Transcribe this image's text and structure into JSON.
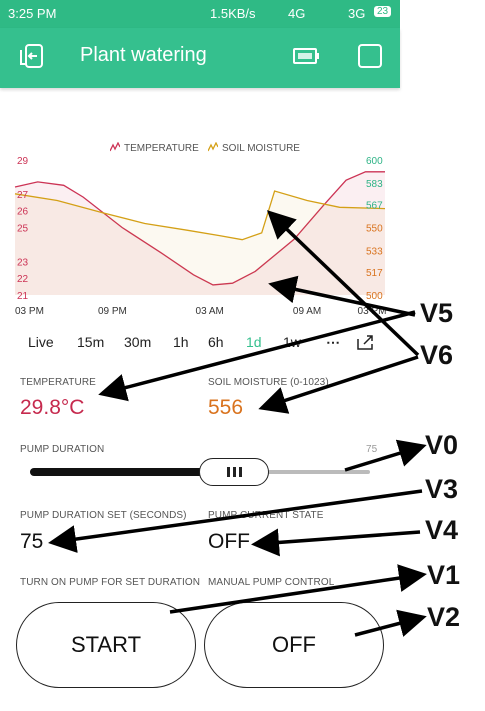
{
  "status_bar": {
    "time": "3:25 PM",
    "speed": "1.5KB/s",
    "network_1": "4G",
    "network_2": "3G",
    "battery": "23"
  },
  "app_bar": {
    "title": "Plant watering"
  },
  "chart_data": {
    "type": "line",
    "title": "",
    "x": [
      "03 PM",
      "09 PM",
      "03 AM",
      "09 AM",
      "03 PM"
    ],
    "xlabel": "",
    "legend_placement": "top",
    "y_left": {
      "ticks": [
        "29",
        "27",
        "26",
        "25",
        "23",
        "22",
        "21"
      ],
      "ylim": [
        21,
        29
      ]
    },
    "y_right": {
      "ticks": [
        "600",
        "583",
        "567",
        "550",
        "533",
        "517",
        "500"
      ],
      "ylim": [
        500,
        600
      ]
    },
    "series": [
      {
        "name": "TEMPERATURE",
        "axis": "left",
        "color": "#cc3355",
        "points": [
          [
            0,
            27.4
          ],
          [
            0.7,
            27.7
          ],
          [
            1.5,
            27.5
          ],
          [
            2.1,
            26.8
          ],
          [
            3.3,
            25.0
          ],
          [
            4.5,
            23.5
          ],
          [
            5.5,
            22.2
          ],
          [
            6.1,
            21.6
          ],
          [
            6.7,
            21.7
          ],
          [
            7.4,
            22.4
          ],
          [
            8.6,
            24.3
          ],
          [
            9.5,
            26.3
          ],
          [
            10.2,
            27.8
          ],
          [
            10.8,
            28.3
          ],
          [
            11.4,
            28.3
          ]
        ]
      },
      {
        "name": "SOIL MOISTURE",
        "axis": "right",
        "color": "#d4a017",
        "points": [
          [
            0,
            575
          ],
          [
            1.3,
            570
          ],
          [
            2.7,
            561
          ],
          [
            4.0,
            553
          ],
          [
            5.3,
            548
          ],
          [
            6.3,
            544
          ],
          [
            7.0,
            541
          ],
          [
            7.6,
            546
          ],
          [
            8.0,
            577
          ],
          [
            9.0,
            570
          ],
          [
            10.0,
            565
          ],
          [
            11.4,
            564
          ]
        ]
      }
    ]
  },
  "time_ranges": [
    "Live",
    "15m",
    "30m",
    "1h",
    "6h",
    "1d",
    "1w",
    "⋯"
  ],
  "active_range": "1d",
  "temperature": {
    "label": "TEMPERATURE",
    "value": "29.8°C",
    "color": "#c62a4e"
  },
  "soil": {
    "label": "SOIL MOISTURE (0-1023)",
    "value": "556",
    "color": "#d9731e"
  },
  "pump_duration": {
    "label": "PUMP DURATION",
    "value": "75",
    "fraction": 0.6
  },
  "pump_set": {
    "label": "PUMP DURATION SET (SECONDS)",
    "value": "75"
  },
  "pump_state": {
    "label": "PUMP CURRENT STATE",
    "value": "OFF"
  },
  "turn_on": {
    "label": "TURN ON PUMP FOR SET DURATION",
    "button": "START"
  },
  "manual": {
    "label": "MANUAL PUMP CONTROL",
    "button": "OFF"
  },
  "callouts": {
    "v5": "V5",
    "v6": "V6",
    "v0": "V0",
    "v3": "V3",
    "v4": "V4",
    "v1": "V1",
    "v2": "V2"
  }
}
